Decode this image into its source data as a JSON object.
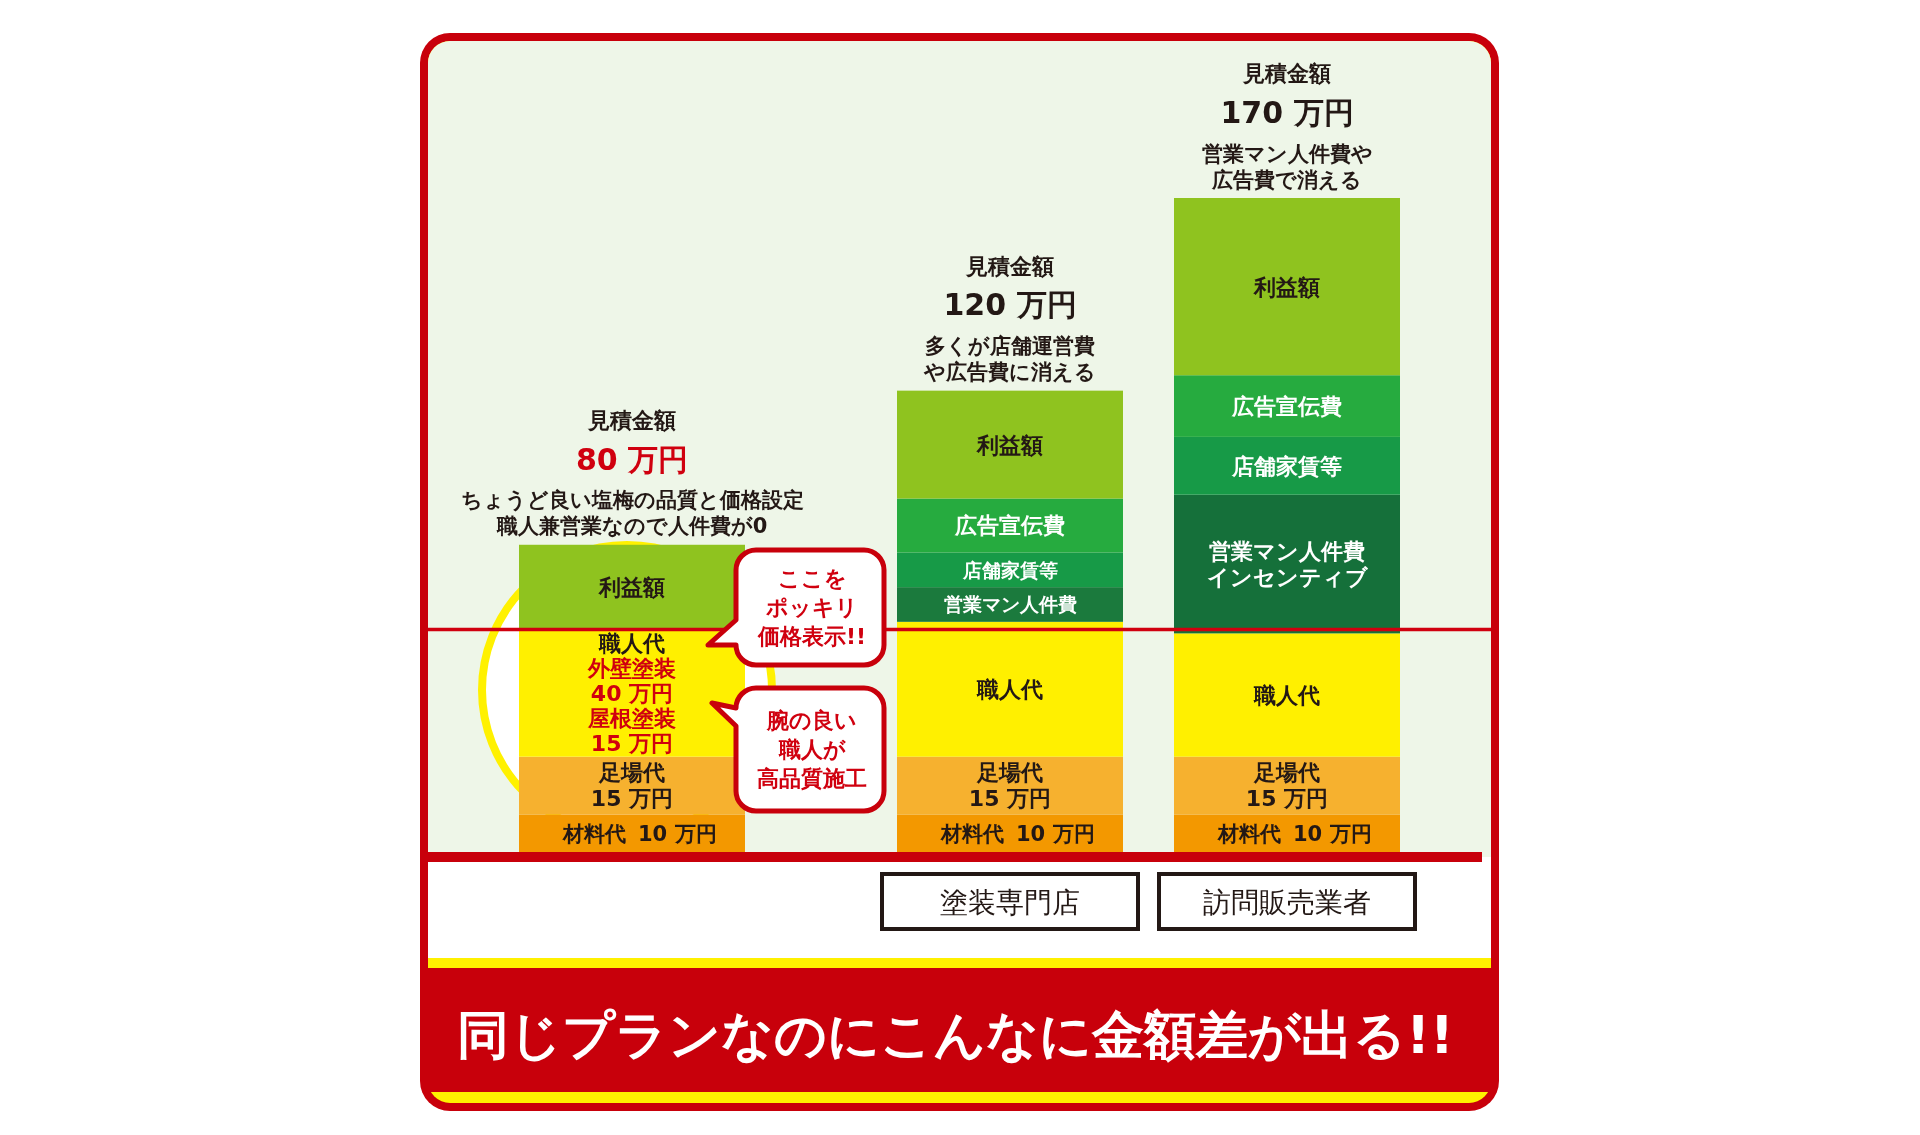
{
  "chart_data": {
    "type": "bar",
    "stacked": true,
    "title": "同じプランなのにこんなに金額差が出る!!",
    "categories": [
      null,
      "塗装専門店",
      "訪問販売業者"
    ],
    "series": [
      {
        "name": "材料代",
        "color": "#f39800",
        "values": [
          10,
          10,
          10
        ],
        "value_labels": [
          "10 万円",
          "10 万円",
          "10 万円"
        ]
      },
      {
        "name": "足場代",
        "color": "#f6b12f",
        "values": [
          15,
          15,
          15
        ],
        "value_labels": [
          "15 万円",
          "15 万円",
          "15 万円"
        ]
      },
      {
        "name": "職人代",
        "color": "#fff000",
        "values": [
          33,
          35,
          32
        ]
      },
      {
        "name": "営業マン人件費",
        "color": "#1b7a3d",
        "values": [
          null,
          9,
          null
        ]
      },
      {
        "name": "営業マン人件費インセンティブ",
        "color": "#15703a",
        "values": [
          null,
          null,
          36
        ]
      },
      {
        "name": "店舗家賃等",
        "color": "#179a47",
        "values": [
          null,
          9,
          15
        ]
      },
      {
        "name": "広告宣伝費",
        "color": "#26ab3f",
        "values": [
          null,
          14,
          16
        ]
      },
      {
        "name": "利益額",
        "color": "#8fc31f",
        "values": [
          22,
          28,
          46
        ]
      }
    ],
    "totals": [
      "80 万円",
      "120 万円",
      "170 万円"
    ],
    "ref_lines": [
      {
        "axis": "y",
        "value": 58,
        "color": "#d0000f"
      }
    ],
    "annotations": [
      "見積金額",
      "ちょうど良い塩梅の品質と価格設定職人兼営業なので人件費が0",
      "見積金額",
      "多くが店舗運営費や広告費に消える",
      "見積金額",
      "営業マン人件費や広告費で消える",
      "外壁塗装40 万円屋根塗装15 万円",
      "ここをポッキリ価格表示!!",
      "腕の良い職人が高品質施工"
    ]
  }
}
